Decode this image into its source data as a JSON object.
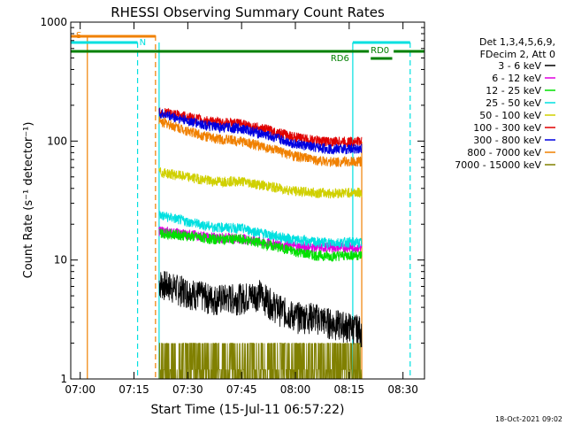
{
  "chart_data": {
    "type": "line",
    "title": "RHESSI Observing Summary Count Rates",
    "xlabel": "Start Time (15-Jul-11 06:57:22)",
    "ylabel": "Count Rate (s⁻¹ detector⁻¹)",
    "y_scale": "log",
    "ylim": [
      1,
      1000
    ],
    "xlim": [
      "06:57:22",
      "08:36:00"
    ],
    "x_ticks": [
      "07:00",
      "07:15",
      "07:30",
      "07:45",
      "08:00",
      "08:15",
      "08:30"
    ],
    "y_ticks": [
      "1",
      "10",
      "100",
      "1000"
    ],
    "legend_header": [
      "Det 1,3,4,5,6,9,",
      "FDecim 2, Att 0"
    ],
    "legend_position": "right",
    "grid": false,
    "footer_date": "18-Oct-2021 09:02",
    "series": [
      {
        "name": "3 - 6 keV",
        "color": "#000000",
        "points": [
          [
            "07:22:00",
            6.5
          ],
          [
            "07:30:00",
            5.5
          ],
          [
            "07:37:00",
            4.8
          ],
          [
            "07:45:00",
            4.9
          ],
          [
            "07:50:00",
            5.3
          ],
          [
            "07:55:00",
            4.0
          ],
          [
            "08:00:00",
            3.4
          ],
          [
            "08:05:00",
            3.4
          ],
          [
            "08:10:00",
            3.0
          ],
          [
            "08:15:00",
            2.8
          ],
          [
            "08:18:30",
            2.6
          ]
        ]
      },
      {
        "name": "6 - 12 keV",
        "color": "#e000e0",
        "points": [
          [
            "07:22:00",
            17.5
          ],
          [
            "07:30:00",
            16.5
          ],
          [
            "07:37:00",
            15.5
          ],
          [
            "07:45:00",
            15.2
          ],
          [
            "07:52:00",
            14.0
          ],
          [
            "08:00:00",
            13.0
          ],
          [
            "08:05:00",
            12.8
          ],
          [
            "08:10:00",
            12.8
          ],
          [
            "08:15:00",
            12.8
          ],
          [
            "08:18:30",
            12.8
          ]
        ]
      },
      {
        "name": "12 - 25 keV",
        "color": "#00e000",
        "points": [
          [
            "07:22:00",
            17.0
          ],
          [
            "07:30:00",
            16.0
          ],
          [
            "07:37:00",
            15.0
          ],
          [
            "07:45:00",
            15.0
          ],
          [
            "07:52:00",
            13.5
          ],
          [
            "08:00:00",
            11.8
          ],
          [
            "08:05:00",
            11.0
          ],
          [
            "08:10:00",
            10.8
          ],
          [
            "08:15:00",
            11.0
          ],
          [
            "08:18:30",
            11.0
          ]
        ]
      },
      {
        "name": "25 - 50 keV",
        "color": "#00e0e0",
        "points": [
          [
            "07:22:00",
            24.0
          ],
          [
            "07:30:00",
            21.0
          ],
          [
            "07:37:00",
            19.0
          ],
          [
            "07:45:00",
            18.5
          ],
          [
            "07:52:00",
            16.5
          ],
          [
            "08:00:00",
            14.8
          ],
          [
            "08:05:00",
            14.2
          ],
          [
            "08:10:00",
            14.0
          ],
          [
            "08:15:00",
            14.2
          ],
          [
            "08:18:30",
            14.0
          ]
        ]
      },
      {
        "name": "50 - 100 keV",
        "color": "#d0d000",
        "points": [
          [
            "07:22:00",
            55.0
          ],
          [
            "07:30:00",
            50.0
          ],
          [
            "07:37:00",
            46.0
          ],
          [
            "07:45:00",
            46.0
          ],
          [
            "07:52:00",
            42.0
          ],
          [
            "08:00:00",
            38.0
          ],
          [
            "08:05:00",
            37.0
          ],
          [
            "08:10:00",
            36.5
          ],
          [
            "08:15:00",
            37.0
          ],
          [
            "08:18:30",
            37.0
          ]
        ]
      },
      {
        "name": "100 - 300 keV",
        "color": "#e00000",
        "points": [
          [
            "07:22:00",
            178.0
          ],
          [
            "07:30:00",
            160.0
          ],
          [
            "07:37:00",
            145.0
          ],
          [
            "07:45:00",
            140.0
          ],
          [
            "07:52:00",
            125.0
          ],
          [
            "08:00:00",
            108.0
          ],
          [
            "08:05:00",
            102.0
          ],
          [
            "08:10:00",
            99.0
          ],
          [
            "08:15:00",
            99.0
          ],
          [
            "08:18:30",
            100.0
          ]
        ]
      },
      {
        "name": "300 - 800 keV",
        "color": "#0000e0",
        "points": [
          [
            "07:22:00",
            172.0
          ],
          [
            "07:30:00",
            148.0
          ],
          [
            "07:37:00",
            132.0
          ],
          [
            "07:45:00",
            128.0
          ],
          [
            "07:52:00",
            112.0
          ],
          [
            "08:00:00",
            95.0
          ],
          [
            "08:05:00",
            89.0
          ],
          [
            "08:10:00",
            86.0
          ],
          [
            "08:15:00",
            86.0
          ],
          [
            "08:18:30",
            87.0
          ]
        ]
      },
      {
        "name": "800 - 7000 keV",
        "color": "#f08000",
        "points": [
          [
            "07:22:00",
            148.0
          ],
          [
            "07:30:00",
            122.0
          ],
          [
            "07:37:00",
            106.0
          ],
          [
            "07:45:00",
            100.0
          ],
          [
            "07:52:00",
            88.0
          ],
          [
            "08:00:00",
            75.0
          ],
          [
            "08:05:00",
            70.0
          ],
          [
            "08:10:00",
            67.0
          ],
          [
            "08:15:00",
            67.0
          ],
          [
            "08:18:30",
            67.0
          ]
        ]
      },
      {
        "name": "7000 - 15000 keV",
        "color": "#808000",
        "points": [
          [
            "07:22:00",
            1.0
          ],
          [
            "07:30:00",
            1.0
          ],
          [
            "07:40:00",
            1.5
          ],
          [
            "07:47:00",
            1.5
          ],
          [
            "07:53:00",
            1.2
          ],
          [
            "08:00:00",
            1.0
          ],
          [
            "08:10:00",
            1.0
          ],
          [
            "08:15:00",
            1.3
          ],
          [
            "08:18:30",
            1.2
          ]
        ]
      }
    ],
    "flags": [
      {
        "label": "S",
        "color": "#f08000"
      },
      {
        "label": "N",
        "color": "#00e0e0"
      },
      {
        "label": "RD0",
        "color": "#008000"
      },
      {
        "label": "RD6",
        "color": "#008000"
      }
    ]
  }
}
